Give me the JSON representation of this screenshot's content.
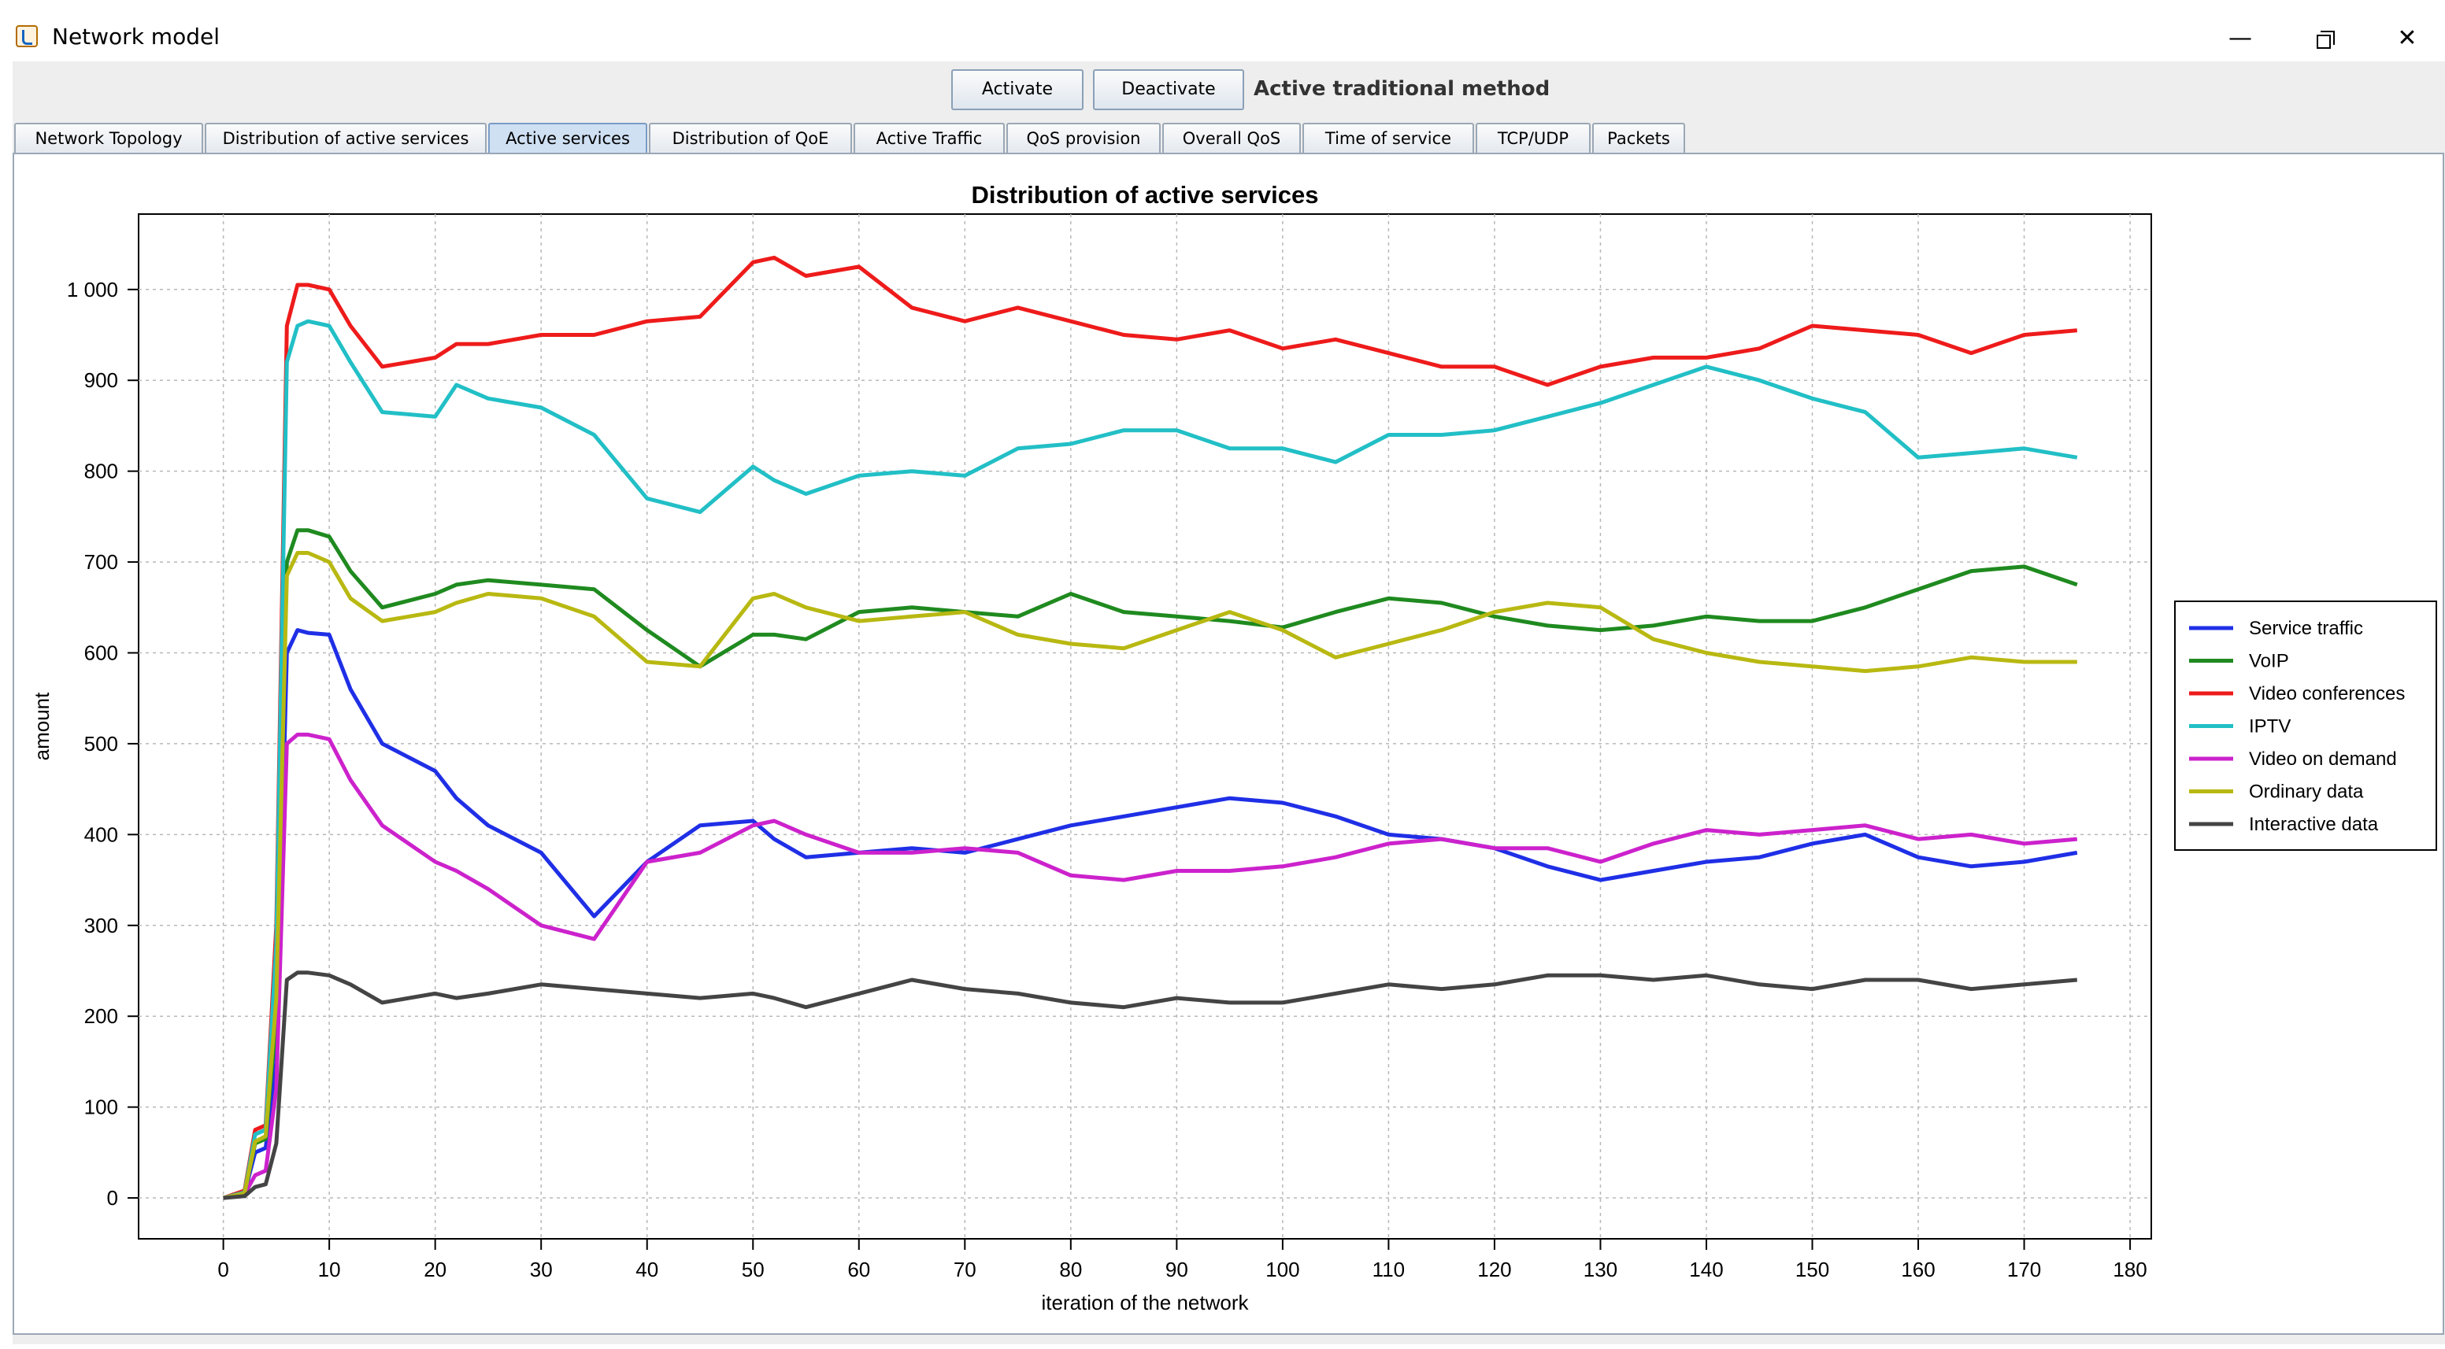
{
  "window": {
    "title": "Network model"
  },
  "toolbar": {
    "activate_label": "Activate",
    "deactivate_label": "Deactivate",
    "method_label": "Active traditional method"
  },
  "tabs": [
    {
      "label": "Network Topology"
    },
    {
      "label": "Distribution of active services"
    },
    {
      "label": "Active services",
      "active": true
    },
    {
      "label": "Distribution of QoE"
    },
    {
      "label": "Active Traffic"
    },
    {
      "label": "QoS provision"
    },
    {
      "label": "Overall QoS"
    },
    {
      "label": "Time of service"
    },
    {
      "label": "TCP/UDP"
    },
    {
      "label": "Packets"
    }
  ],
  "chart_data": {
    "type": "line",
    "title": "Distribution of active services",
    "xlabel": "iteration of the network",
    "ylabel": "amount",
    "xlim": [
      -8,
      182
    ],
    "ylim": [
      -45,
      1083
    ],
    "xticks": [
      0,
      10,
      20,
      30,
      40,
      50,
      60,
      70,
      80,
      90,
      100,
      110,
      120,
      130,
      140,
      150,
      160,
      170,
      180
    ],
    "yticks": [
      0,
      100,
      200,
      300,
      400,
      500,
      600,
      700,
      800,
      900,
      1000
    ],
    "ytick_labels": [
      "0",
      "100",
      "200",
      "300",
      "400",
      "500",
      "600",
      "700",
      "800",
      "900",
      "1 000"
    ],
    "grid": true,
    "legend": "right",
    "x": [
      0,
      2,
      3,
      4,
      5,
      6,
      7,
      8,
      10,
      12,
      15,
      20,
      22,
      25,
      30,
      35,
      40,
      45,
      50,
      52,
      55,
      60,
      65,
      70,
      75,
      80,
      85,
      90,
      95,
      100,
      105,
      110,
      115,
      120,
      125,
      130,
      135,
      140,
      145,
      150,
      155,
      160,
      165,
      170,
      175
    ],
    "series": [
      {
        "name": "Service traffic",
        "color": "#1f2fe6",
        "values": [
          0,
          5,
          50,
          55,
          150,
          600,
          625,
          622,
          620,
          560,
          500,
          470,
          440,
          410,
          380,
          310,
          370,
          410,
          415,
          395,
          375,
          380,
          385,
          380,
          395,
          410,
          420,
          430,
          440,
          435,
          420,
          400,
          395,
          385,
          365,
          350,
          360,
          370,
          375,
          390,
          400,
          375,
          365,
          370,
          380
        ]
      },
      {
        "name": "VoIP",
        "color": "#1f8a1f",
        "values": [
          0,
          5,
          60,
          65,
          200,
          700,
          735,
          735,
          728,
          690,
          650,
          665,
          675,
          680,
          675,
          670,
          625,
          585,
          620,
          620,
          615,
          645,
          650,
          645,
          640,
          665,
          645,
          640,
          635,
          628,
          645,
          660,
          655,
          640,
          630,
          625,
          630,
          640,
          635,
          635,
          650,
          670,
          690,
          695,
          675
        ]
      },
      {
        "name": "Video conferences",
        "color": "#ee1b1b",
        "values": [
          0,
          8,
          75,
          80,
          300,
          960,
          1005,
          1005,
          1000,
          960,
          915,
          925,
          940,
          940,
          950,
          950,
          965,
          970,
          1030,
          1035,
          1015,
          1025,
          980,
          965,
          980,
          965,
          950,
          945,
          955,
          935,
          945,
          930,
          915,
          915,
          895,
          915,
          925,
          925,
          935,
          960,
          955,
          950,
          930,
          950,
          955
        ]
      },
      {
        "name": "IPTV",
        "color": "#22bfc6",
        "values": [
          0,
          6,
          70,
          75,
          280,
          920,
          960,
          965,
          960,
          920,
          865,
          860,
          895,
          880,
          870,
          840,
          770,
          755,
          805,
          790,
          775,
          795,
          800,
          795,
          825,
          830,
          845,
          845,
          825,
          825,
          810,
          840,
          840,
          845,
          860,
          875,
          895,
          915,
          900,
          880,
          865,
          815,
          820,
          825,
          815
        ]
      },
      {
        "name": "Video on demand",
        "color": "#cc22cc",
        "values": [
          0,
          4,
          25,
          30,
          120,
          500,
          510,
          510,
          505,
          460,
          410,
          370,
          360,
          340,
          300,
          285,
          370,
          380,
          410,
          415,
          400,
          380,
          380,
          385,
          380,
          355,
          350,
          360,
          360,
          365,
          375,
          390,
          395,
          385,
          385,
          370,
          390,
          405,
          400,
          405,
          410,
          395,
          400,
          390,
          395
        ]
      },
      {
        "name": "Ordinary data",
        "color": "#b8b812",
        "values": [
          0,
          5,
          62,
          68,
          220,
          685,
          710,
          710,
          700,
          660,
          635,
          645,
          655,
          665,
          660,
          640,
          590,
          585,
          660,
          665,
          650,
          635,
          640,
          645,
          620,
          610,
          605,
          625,
          645,
          625,
          595,
          610,
          625,
          645,
          655,
          650,
          615,
          600,
          590,
          585,
          580,
          585,
          595,
          590,
          590
        ]
      },
      {
        "name": "Interactive data",
        "color": "#444444",
        "values": [
          0,
          2,
          12,
          15,
          60,
          240,
          248,
          248,
          245,
          235,
          215,
          225,
          220,
          225,
          235,
          230,
          225,
          220,
          225,
          220,
          210,
          225,
          240,
          230,
          225,
          215,
          210,
          220,
          215,
          215,
          225,
          235,
          230,
          235,
          245,
          245,
          240,
          245,
          235,
          230,
          240,
          240,
          230,
          235,
          240
        ]
      }
    ]
  }
}
